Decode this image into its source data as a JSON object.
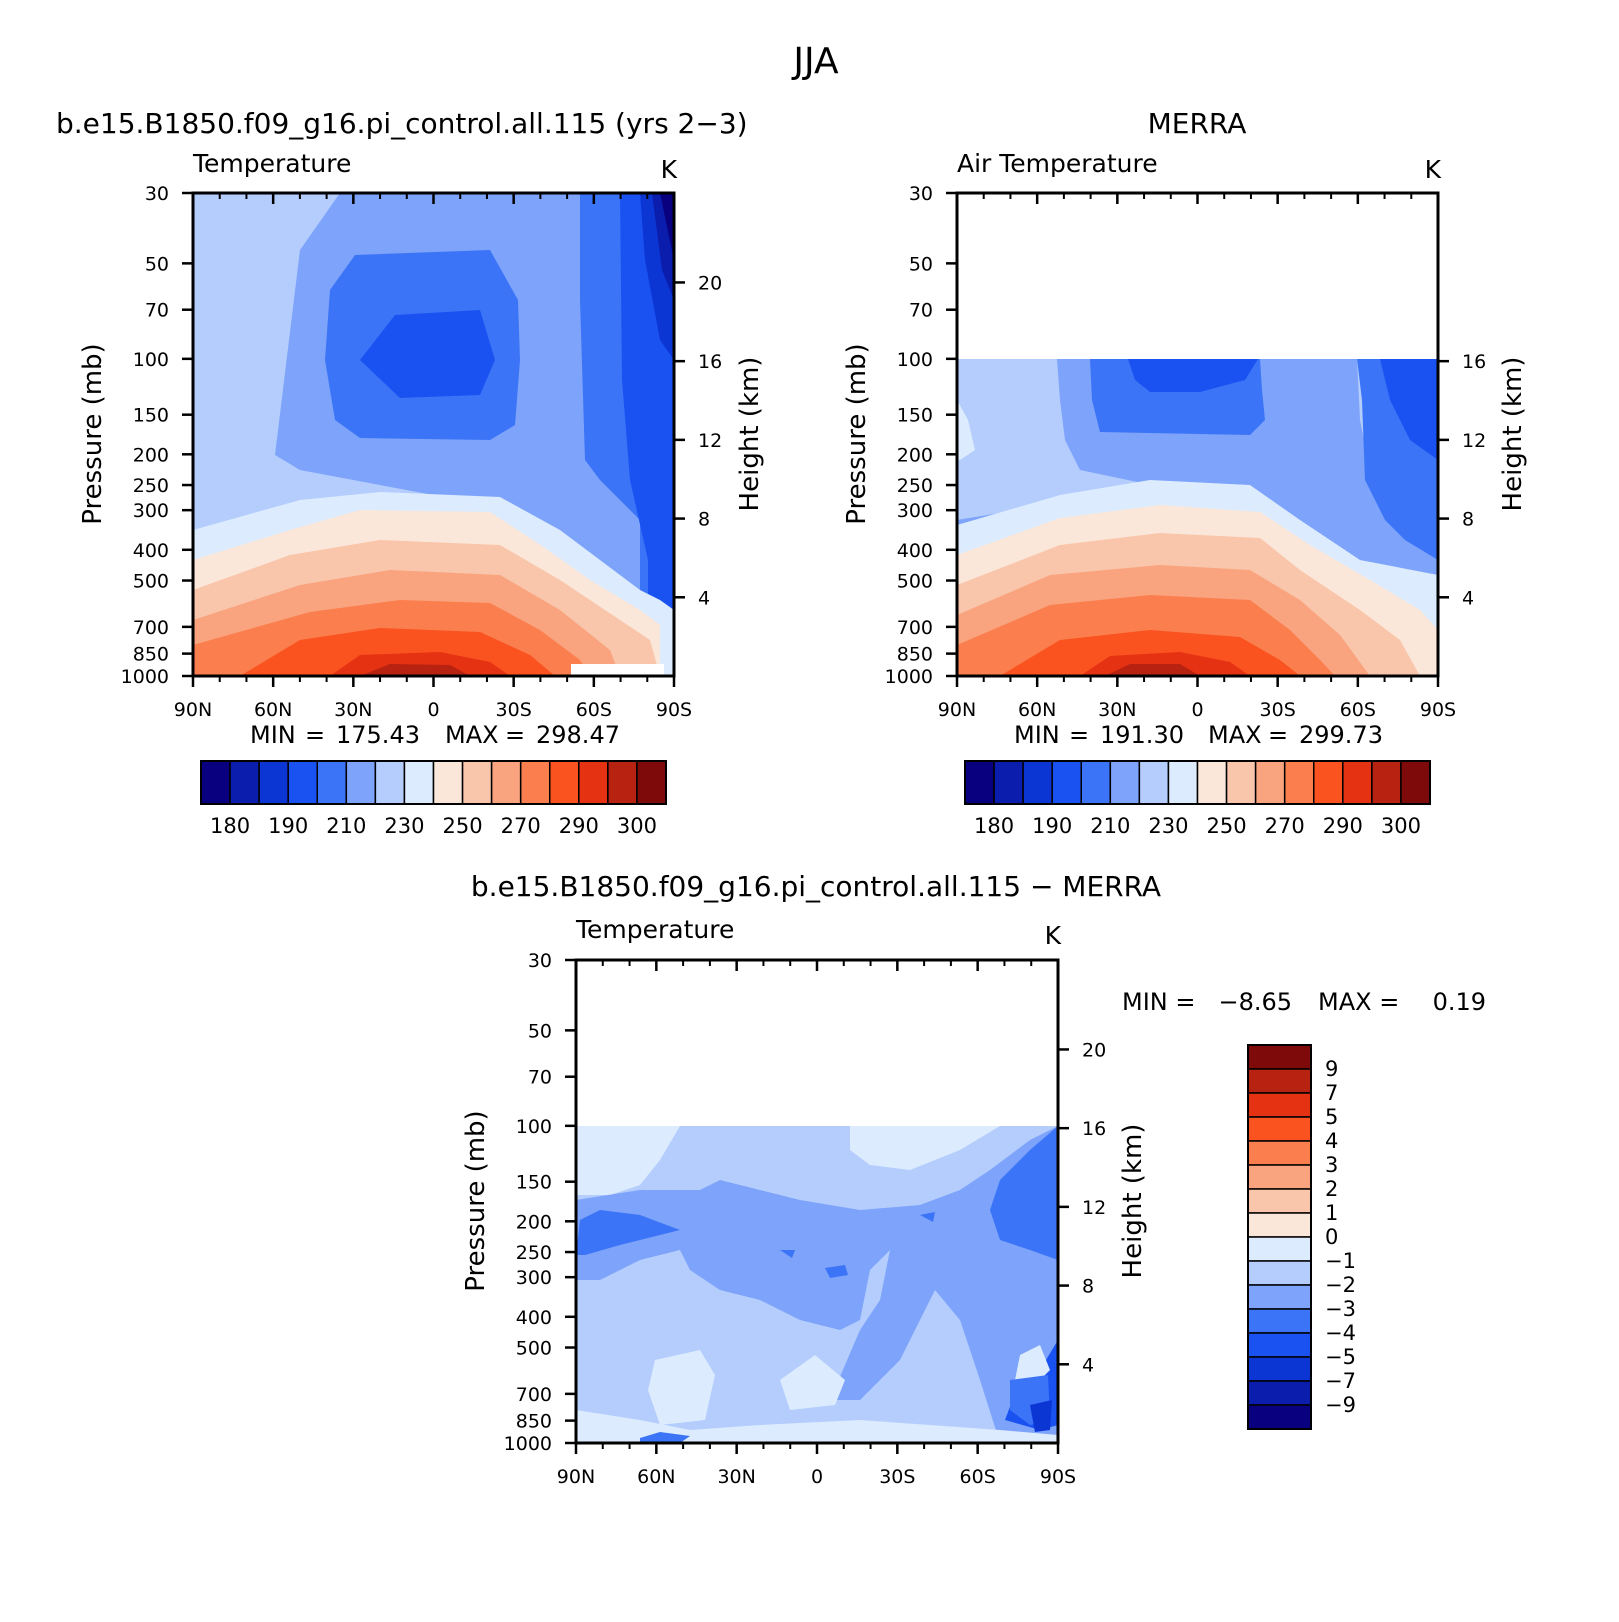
{
  "figure": {
    "title": "JJA"
  },
  "colors": {
    "abs_palette": [
      "#08007f",
      "#0a1dac",
      "#0c36d4",
      "#1a52f2",
      "#3b74f6",
      "#7da3fb",
      "#b4cdfd",
      "#dcebfd",
      "#fbe7d9",
      "#f9c6ab",
      "#f9a47e",
      "#fa7e4e",
      "#fa531f",
      "#e53213",
      "#b82210",
      "#7f0a0a"
    ],
    "diff_palette": [
      "#08007f",
      "#0a1dac",
      "#0c36d4",
      "#1a52f2",
      "#3b74f6",
      "#7da3fb",
      "#b4cdfd",
      "#dcebfd",
      "#fbe7d9",
      "#f9c6ab",
      "#f9a47e",
      "#fa7e4e",
      "#fa531f",
      "#e53213",
      "#b82210",
      "#7f0a0a"
    ]
  },
  "chart_data": [
    {
      "id": "model",
      "type": "heatmap",
      "title": "b.e15.B1850.f09_g16.pi_control.all.115 (yrs 2−3)",
      "left_string": "Temperature",
      "right_string": "K",
      "xlabel": "",
      "ylabel": "Pressure (mb)",
      "y2label": "Height (km)",
      "x_ticks": [
        "90N",
        "60N",
        "30N",
        "0",
        "30S",
        "60S",
        "90S"
      ],
      "y_ticks": [
        30,
        50,
        70,
        100,
        150,
        200,
        250,
        300,
        400,
        500,
        700,
        850,
        1000
      ],
      "y2_ticks": [
        4,
        8,
        12,
        16,
        20
      ],
      "ylim": [
        1000,
        30
      ],
      "xlim": [
        90,
        -90
      ],
      "stats": {
        "min_label": "MIN",
        "min": "175.43",
        "max_label": "MAX",
        "max": "298.47"
      },
      "colorbar_labels": [
        "180",
        "190",
        "210",
        "230",
        "250",
        "270",
        "290",
        "300"
      ],
      "data_top_mb": 30
    },
    {
      "id": "obs",
      "type": "heatmap",
      "title": "MERRA",
      "left_string": "Air Temperature",
      "right_string": "K",
      "xlabel": "",
      "ylabel": "Pressure (mb)",
      "y2label": "Height (km)",
      "x_ticks": [
        "90N",
        "60N",
        "30N",
        "0",
        "30S",
        "60S",
        "90S"
      ],
      "y_ticks": [
        30,
        50,
        70,
        100,
        150,
        200,
        250,
        300,
        400,
        500,
        700,
        850,
        1000
      ],
      "y2_ticks": [
        4,
        8,
        12,
        16
      ],
      "ylim": [
        1000,
        30
      ],
      "xlim": [
        90,
        -90
      ],
      "stats": {
        "min_label": "MIN",
        "min": "191.30",
        "max_label": "MAX",
        "max": "299.73"
      },
      "colorbar_labels": [
        "180",
        "190",
        "210",
        "230",
        "250",
        "270",
        "290",
        "300"
      ],
      "data_top_mb": 100
    },
    {
      "id": "diff",
      "type": "heatmap",
      "title": "b.e15.B1850.f09_g16.pi_control.all.115 − MERRA",
      "left_string": "Temperature",
      "right_string": "K",
      "xlabel": "",
      "ylabel": "Pressure (mb)",
      "y2label": "Height (km)",
      "x_ticks": [
        "90N",
        "60N",
        "30N",
        "0",
        "30S",
        "60S",
        "90S"
      ],
      "y_ticks": [
        30,
        50,
        70,
        100,
        150,
        200,
        250,
        300,
        400,
        500,
        700,
        850,
        1000
      ],
      "y2_ticks": [
        4,
        8,
        12,
        16,
        20
      ],
      "ylim": [
        1000,
        30
      ],
      "xlim": [
        90,
        -90
      ],
      "stats": {
        "min_label": "MIN =",
        "min": "−8.65",
        "max_label": "MAX =",
        "max": "0.19"
      },
      "colorbar_labels": [
        "9",
        "7",
        "5",
        "4",
        "3",
        "2",
        "1",
        "0",
        "−1",
        "−2",
        "−3",
        "−4",
        "−5",
        "−7",
        "−9"
      ],
      "data_top_mb": 100
    }
  ]
}
